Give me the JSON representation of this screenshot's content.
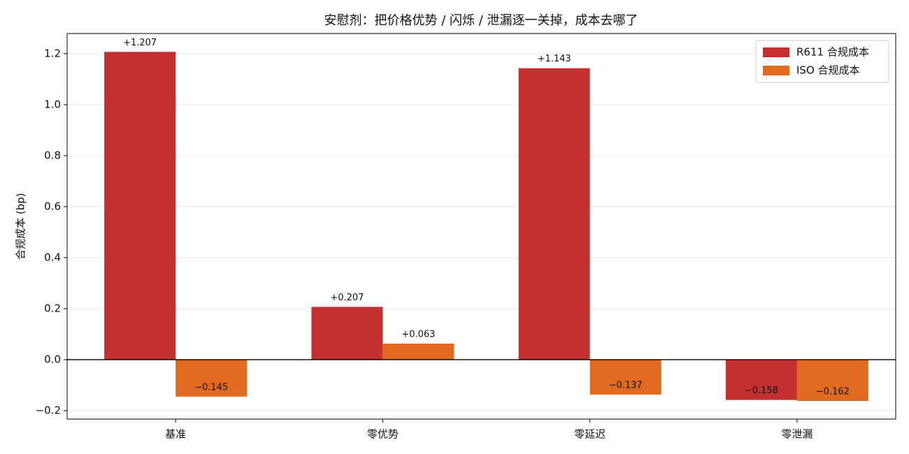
{
  "chart_data": {
    "type": "bar",
    "title": "安慰剂：把价格优势 / 闪烁 / 泄漏逐一关掉，成本去哪了",
    "y_label": "合规成本 (bp)",
    "categories": [
      "基准",
      "零优势",
      "零延迟",
      "零泄漏"
    ],
    "series": [
      {
        "name": "R611 合规成本",
        "color": "#c43030",
        "values": [
          1.207,
          0.207,
          1.143,
          -0.158
        ],
        "value_labels": [
          "+1.207",
          "+0.207",
          "+1.143",
          "−0.158"
        ]
      },
      {
        "name": "ISO 合规成本",
        "color": "#e06a20",
        "values": [
          -0.145,
          0.063,
          -0.137,
          -0.162
        ],
        "value_labels": [
          "−0.145",
          "+0.063",
          "−0.137",
          "−0.162"
        ]
      }
    ],
    "ylim": [
      -0.233,
      1.279
    ],
    "yticks": [
      {
        "value": -0.2,
        "label": "−0.2"
      },
      {
        "value": 0,
        "label": "0.0"
      },
      {
        "value": 0.2,
        "label": "0.2"
      },
      {
        "value": 0.4,
        "label": "0.4"
      },
      {
        "value": 0.6,
        "label": "0.6"
      },
      {
        "value": 0.8,
        "label": "0.8"
      },
      {
        "value": 1.0,
        "label": "1.0"
      },
      {
        "value": 1.2,
        "label": "1.2"
      }
    ],
    "grid": true,
    "legend": "upper right"
  }
}
